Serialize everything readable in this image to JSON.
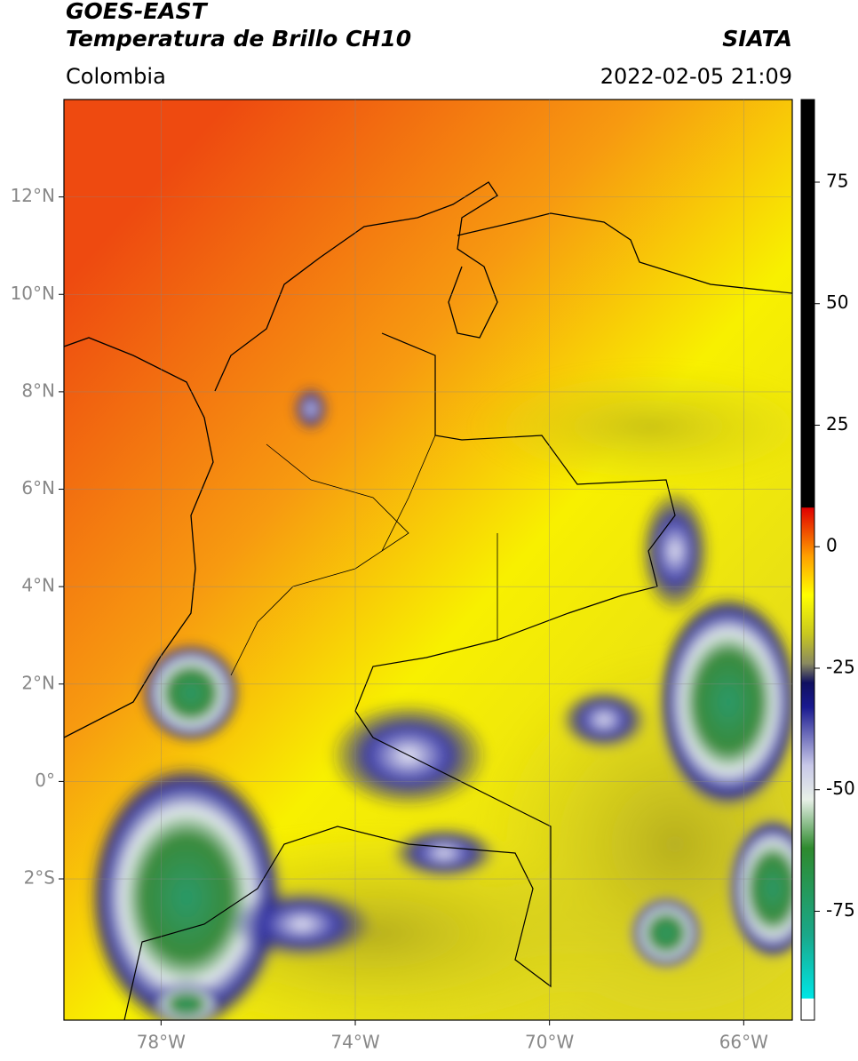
{
  "header": {
    "title": "GOES-EAST",
    "subtitle": "Temperatura de Brillo CH10",
    "source": "SIATA",
    "region": "Colombia",
    "datetime": "2022-02-05 21:09"
  },
  "map": {
    "xlim": [
      -80,
      -65
    ],
    "ylim": [
      -4.9,
      14
    ],
    "xticks": [
      {
        "value": -78,
        "label": "78°W"
      },
      {
        "value": -74,
        "label": "74°W"
      },
      {
        "value": -70,
        "label": "70°W"
      },
      {
        "value": -66,
        "label": "66°W"
      }
    ],
    "yticks": [
      {
        "value": 12,
        "label": "12°N"
      },
      {
        "value": 10,
        "label": "10°N"
      },
      {
        "value": 8,
        "label": "8°N"
      },
      {
        "value": 6,
        "label": "6°N"
      },
      {
        "value": 4,
        "label": "4°N"
      },
      {
        "value": 2,
        "label": "2°N"
      },
      {
        "value": 0,
        "label": "0°"
      },
      {
        "value": -2,
        "label": "2°S"
      }
    ],
    "grid": true
  },
  "colorbar": {
    "lim": [
      -97.4,
      92
    ],
    "ticks": [
      75,
      50,
      25,
      0,
      -25,
      -50,
      -75
    ],
    "colormap": [
      {
        "value": -97.4,
        "color": "#ffffff"
      },
      {
        "value": -93,
        "color": "#ffffff"
      },
      {
        "value": -92.9,
        "color": "#00e5e5"
      },
      {
        "value": -80,
        "color": "#1aa88a"
      },
      {
        "value": -62,
        "color": "#2e8a2e"
      },
      {
        "value": -52,
        "color": "#e8f0e8"
      },
      {
        "value": -45,
        "color": "#c8c8e8"
      },
      {
        "value": -33,
        "color": "#1a1a90"
      },
      {
        "value": -28,
        "color": "#101060"
      },
      {
        "value": -24,
        "color": "#8a8a60"
      },
      {
        "value": -18,
        "color": "#c8c820"
      },
      {
        "value": -10,
        "color": "#ffff00"
      },
      {
        "value": -2,
        "color": "#ffa000"
      },
      {
        "value": 8,
        "color": "#e00000"
      },
      {
        "value": 8.1,
        "color": "#000000"
      },
      {
        "value": 92,
        "color": "#000000"
      }
    ]
  }
}
